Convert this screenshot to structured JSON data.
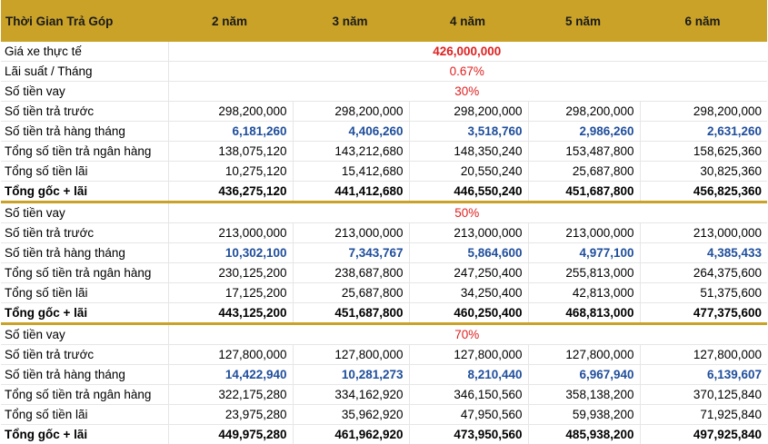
{
  "header": {
    "title": "Thời Gian Trả Góp",
    "years": [
      "2 năm",
      "3 năm",
      "4 năm",
      "5 năm",
      "6 năm"
    ]
  },
  "info": {
    "price_label": "Giá xe thực tế",
    "price_value": "426,000,000",
    "rate_label": "Lãi suất / Tháng",
    "rate_value": "0.67%"
  },
  "labels": {
    "loan": "Số tiền vay",
    "prepaid": "Số tiền trả trước",
    "monthly": "Số tiền trả hàng tháng",
    "bank_total": "Tổng số tiền trả ngân hàng",
    "interest": "Tổng số tiền lãi",
    "grand_total": "Tổng gốc + lãi"
  },
  "sections": [
    {
      "loan_pct": "30%",
      "prepaid": [
        "298,200,000",
        "298,200,000",
        "298,200,000",
        "298,200,000",
        "298,200,000"
      ],
      "monthly": [
        "6,181,260",
        "4,406,260",
        "3,518,760",
        "2,986,260",
        "2,631,260"
      ],
      "bank_total": [
        "138,075,120",
        "143,212,680",
        "148,350,240",
        "153,487,800",
        "158,625,360"
      ],
      "interest": [
        "10,275,120",
        "15,412,680",
        "20,550,240",
        "25,687,800",
        "30,825,360"
      ],
      "grand_total": [
        "436,275,120",
        "441,412,680",
        "446,550,240",
        "451,687,800",
        "456,825,360"
      ]
    },
    {
      "loan_pct": "50%",
      "prepaid": [
        "213,000,000",
        "213,000,000",
        "213,000,000",
        "213,000,000",
        "213,000,000"
      ],
      "monthly": [
        "10,302,100",
        "7,343,767",
        "5,864,600",
        "4,977,100",
        "4,385,433"
      ],
      "bank_total": [
        "230,125,200",
        "238,687,800",
        "247,250,400",
        "255,813,000",
        "264,375,600"
      ],
      "interest": [
        "17,125,200",
        "25,687,800",
        "34,250,400",
        "42,813,000",
        "51,375,600"
      ],
      "grand_total": [
        "443,125,200",
        "451,687,800",
        "460,250,400",
        "468,813,000",
        "477,375,600"
      ]
    },
    {
      "loan_pct": "70%",
      "prepaid": [
        "127,800,000",
        "127,800,000",
        "127,800,000",
        "127,800,000",
        "127,800,000"
      ],
      "monthly": [
        "14,422,940",
        "10,281,273",
        "8,210,440",
        "6,967,940",
        "6,139,607"
      ],
      "bank_total": [
        "322,175,280",
        "334,162,920",
        "346,150,560",
        "358,138,200",
        "370,125,840"
      ],
      "interest": [
        "23,975,280",
        "35,962,920",
        "47,950,560",
        "59,938,200",
        "71,925,840"
      ],
      "grand_total": [
        "449,975,280",
        "461,962,920",
        "473,950,560",
        "485,938,200",
        "497,925,840"
      ]
    }
  ],
  "colors": {
    "header_bg": "#c9a227",
    "highlight_red": "#e02020",
    "monthly_blue": "#1f4e9c"
  }
}
